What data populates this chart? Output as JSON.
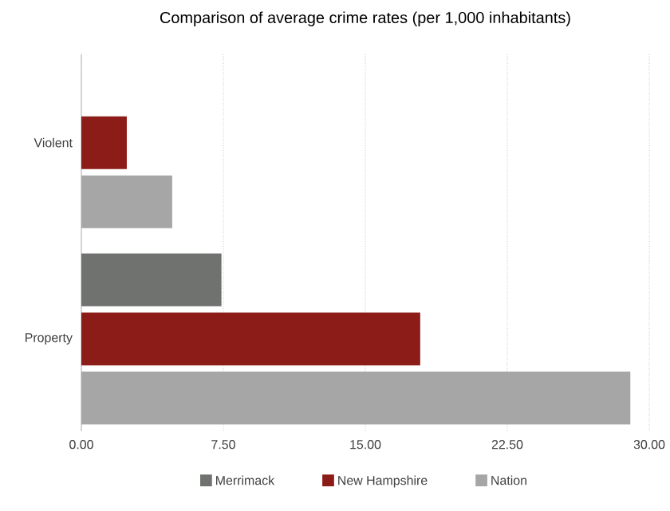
{
  "chart_data": {
    "type": "bar",
    "orientation": "horizontal",
    "title": "Comparison of average crime rates (per 1,000 inhabitants)",
    "categories": [
      "Violent",
      "Property"
    ],
    "series": [
      {
        "name": "Merrimack",
        "color": "#6f726f",
        "values": [
          null,
          7.4
        ]
      },
      {
        "name": "New Hampshire",
        "color": "#8b1c17",
        "values": [
          2.4,
          17.9
        ]
      },
      {
        "name": "Nation",
        "color": "#a6a6a6",
        "values": [
          4.8,
          29.0
        ]
      }
    ],
    "xlim": [
      0,
      30
    ],
    "xticks": [
      {
        "value": 0,
        "label": "0.00"
      },
      {
        "value": 7.5,
        "label": "7.50"
      },
      {
        "value": 15,
        "label": "15.00"
      },
      {
        "value": 22.5,
        "label": "22.50"
      },
      {
        "value": 30,
        "label": "30.00"
      }
    ],
    "grid": "x",
    "legend": "bottom"
  }
}
